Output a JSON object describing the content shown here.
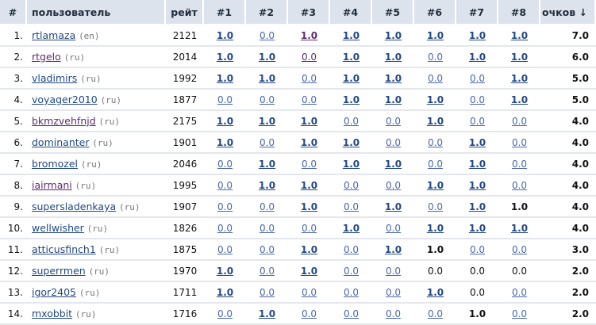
{
  "headers": {
    "num": "#",
    "user": "пользователь",
    "rating": "рейт",
    "rounds": [
      "#1",
      "#2",
      "#3",
      "#4",
      "#5",
      "#6",
      "#7",
      "#8"
    ],
    "points": "очков ↓"
  },
  "rows": [
    {
      "num": "1.",
      "name": "rtlamaza",
      "country": "(en)",
      "rating": "2121",
      "results": [
        "1.0",
        "0.0",
        "1.0",
        "1.0",
        "1.0",
        "1.0",
        "1.0",
        "1.0"
      ],
      "points": "7.0"
    },
    {
      "num": "2.",
      "name": "rtgelo",
      "country": "(ru)",
      "rating": "2014",
      "results": [
        "1.0",
        "1.0",
        "0.0",
        "1.0",
        "1.0",
        "0.0",
        "1.0",
        "1.0"
      ],
      "points": "6.0"
    },
    {
      "num": "3.",
      "name": "vladimirs",
      "country": "(ru)",
      "rating": "1992",
      "results": [
        "1.0",
        "1.0",
        "0.0",
        "1.0",
        "1.0",
        "0.0",
        "0.0",
        "1.0"
      ],
      "points": "5.0"
    },
    {
      "num": "4.",
      "name": "voyager2010",
      "country": "(ru)",
      "rating": "1877",
      "results": [
        "0.0",
        "0.0",
        "0.0",
        "1.0",
        "1.0",
        "1.0",
        "0.0",
        "1.0"
      ],
      "points": "5.0"
    },
    {
      "num": "5.",
      "name": "bkmzvehfnjd",
      "country": "(ru)",
      "rating": "2175",
      "results": [
        "1.0",
        "1.0",
        "1.0",
        "0.0",
        "0.0",
        "1.0",
        "0.0",
        "0.0"
      ],
      "points": "4.0"
    },
    {
      "num": "6.",
      "name": "dominanter",
      "country": "(ru)",
      "rating": "1901",
      "results": [
        "1.0",
        "0.0",
        "1.0",
        "1.0",
        "0.0",
        "0.0",
        "1.0",
        "0.0"
      ],
      "points": "4.0"
    },
    {
      "num": "7.",
      "name": "bromozel",
      "country": "(ru)",
      "rating": "2046",
      "results": [
        "0.0",
        "1.0",
        "0.0",
        "1.0",
        "1.0",
        "0.0",
        "1.0",
        "0.0"
      ],
      "points": "4.0"
    },
    {
      "num": "8.",
      "name": "iairmani",
      "country": "(ru)",
      "rating": "1995",
      "results": [
        "0.0",
        "1.0",
        "1.0",
        "0.0",
        "0.0",
        "1.0",
        "1.0",
        "0.0"
      ],
      "points": "4.0"
    },
    {
      "num": "9.",
      "name": "supersladenkaya",
      "country": "(ru)",
      "rating": "1907",
      "results": [
        "0.0",
        "0.0",
        "1.0",
        "0.0",
        "1.0",
        "0.0",
        "1.0",
        "1.0"
      ],
      "points": "4.0"
    },
    {
      "num": "10.",
      "name": "wellwisher",
      "country": "(ru)",
      "rating": "1826",
      "results": [
        "0.0",
        "0.0",
        "0.0",
        "1.0",
        "0.0",
        "1.0",
        "1.0",
        "1.0"
      ],
      "points": "4.0"
    },
    {
      "num": "11.",
      "name": "atticusfinch1",
      "country": "(ru)",
      "rating": "1875",
      "results": [
        "0.0",
        "0.0",
        "1.0",
        "0.0",
        "1.0",
        "1.0",
        "0.0",
        "0.0"
      ],
      "points": "3.0"
    },
    {
      "num": "12.",
      "name": "superrmen",
      "country": "(ru)",
      "rating": "1970",
      "results": [
        "1.0",
        "0.0",
        "1.0",
        "0.0",
        "0.0",
        "0.0",
        "0.0",
        "0.0"
      ],
      "points": "2.0"
    },
    {
      "num": "13.",
      "name": "igor2405",
      "country": "(ru)",
      "rating": "1711",
      "results": [
        "1.0",
        "0.0",
        "0.0",
        "0.0",
        "0.0",
        "1.0",
        "0.0",
        "0.0"
      ],
      "points": "2.0"
    },
    {
      "num": "14.",
      "name": "mxobbit",
      "country": "(ru)",
      "rating": "1716",
      "results": [
        "0.0",
        "1.0",
        "0.0",
        "0.0",
        "0.0",
        "0.0",
        "1.0",
        "0.0"
      ],
      "points": "2.0"
    }
  ],
  "colors": {
    "header_bg": "#dde3ec",
    "link": "#23487f",
    "visited_link": "#5e2a6e"
  }
}
